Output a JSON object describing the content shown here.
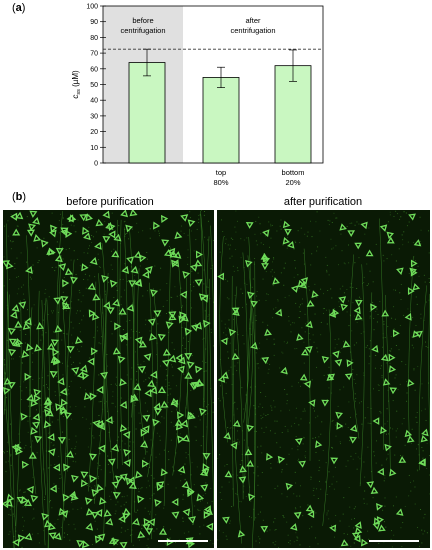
{
  "panel_a": {
    "label": "a"
  },
  "panel_b": {
    "label": "b",
    "left_title": "before purification",
    "right_title": "after purification",
    "dna_color": "#6fdc5a",
    "background_color": "#0a1a05"
  },
  "chart_data": {
    "type": "bar",
    "categories": [
      "",
      "top\n80%",
      "bottom\n20%"
    ],
    "values": [
      64,
      54.5,
      62
    ],
    "errors": [
      8.5,
      6.5,
      10
    ],
    "ylabel": "c_ss (µM)",
    "ylim": [
      0,
      100
    ],
    "yticks": [
      0,
      10,
      20,
      30,
      40,
      50,
      60,
      70,
      80,
      90,
      100
    ],
    "reference_line": 72.5,
    "bar_color": "#c9f7c1",
    "shaded_region_color": "#e0e0e0",
    "annotations": [
      {
        "text": "before\ncentrifugation",
        "group": "before"
      },
      {
        "text": "after\ncentrifugation",
        "group": "after"
      }
    ]
  }
}
